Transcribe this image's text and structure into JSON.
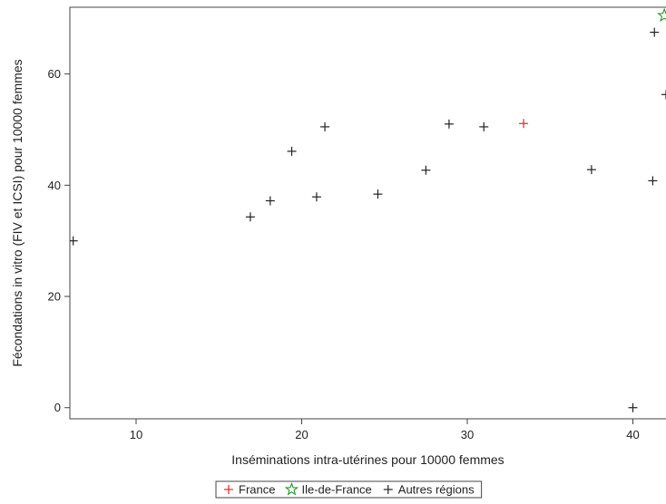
{
  "chart_data": {
    "type": "scatter",
    "xlabel": "Inséminations intra-utérines pour 10000 femmes",
    "ylabel": "Fécondations in vitro (FIV et ICSI) pour 10000 femmes",
    "xlim": [
      6,
      42
    ],
    "ylim": [
      -2,
      72
    ],
    "xticks": [
      10,
      20,
      30,
      40
    ],
    "yticks": [
      0,
      20,
      40,
      60
    ],
    "grid": false,
    "legend_position": "bottom-center",
    "series": [
      {
        "name": "France",
        "marker": "plus",
        "color": "#e0262c",
        "points": [
          {
            "x": 33.4,
            "y": 51.1
          }
        ]
      },
      {
        "name": "Ile-de-France",
        "marker": "star",
        "color": "#22992b",
        "points": [
          {
            "x": 41.9,
            "y": 70.5
          }
        ]
      },
      {
        "name": "Autres régions",
        "marker": "plus",
        "color": "#222222",
        "points": [
          {
            "x": 6.2,
            "y": 30.0
          },
          {
            "x": 16.9,
            "y": 34.3
          },
          {
            "x": 18.1,
            "y": 37.2
          },
          {
            "x": 19.4,
            "y": 46.1
          },
          {
            "x": 20.9,
            "y": 37.9
          },
          {
            "x": 21.4,
            "y": 50.5
          },
          {
            "x": 24.6,
            "y": 38.4
          },
          {
            "x": 27.5,
            "y": 42.7
          },
          {
            "x": 28.9,
            "y": 51.0
          },
          {
            "x": 31.0,
            "y": 50.5
          },
          {
            "x": 37.5,
            "y": 42.8
          },
          {
            "x": 40.0,
            "y": 0.0
          },
          {
            "x": 41.2,
            "y": 40.8
          },
          {
            "x": 41.3,
            "y": 67.5
          },
          {
            "x": 42.0,
            "y": 56.3
          }
        ]
      }
    ]
  }
}
